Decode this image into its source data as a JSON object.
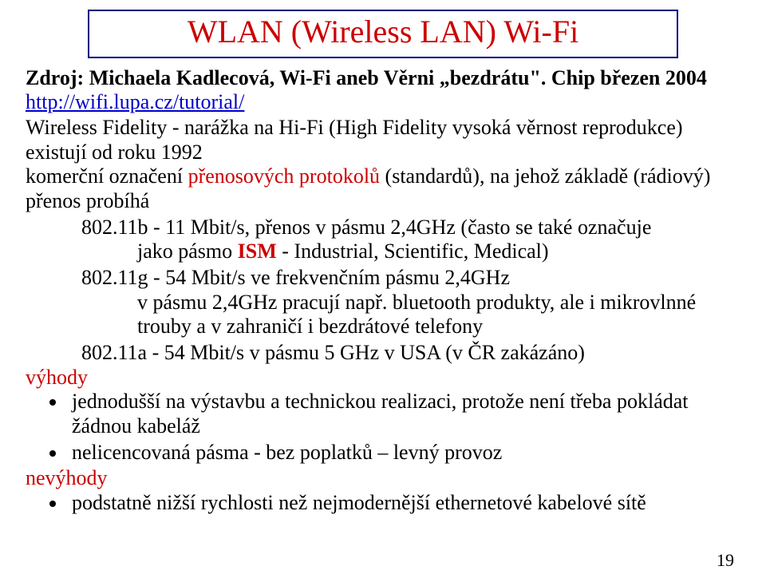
{
  "colors": {
    "title_red": "#cc0000",
    "border_navy": "#000080",
    "link_blue": "#0000cc",
    "text_black": "#000000",
    "background": "#ffffff"
  },
  "typography": {
    "title_fontsize": 40,
    "body_fontsize": 26,
    "pagenum_fontsize": 22,
    "font_family": "Times New Roman"
  },
  "title": "WLAN (Wireless LAN) Wi-Fi",
  "source_line": "Zdroj: Michaela Kadlecová, Wi-Fi aneb Věrni „bezdrátu\". Chip březen 2004",
  "link": "http://wifi.lupa.cz/tutorial/",
  "intro1": "Wireless Fidelity - narážka na Hi-Fi (High Fidelity vysoká věrnost reprodukce)",
  "intro2": "existují od roku 1992",
  "intro3a": "komerční označení ",
  "intro3_red": "přenosových protokolů",
  "intro3b": " (standardů), na jehož základě (rádiový) přenos probíhá",
  "std_b_a": "802.11b - 11 Mbit/s, přenos v pásmu 2,4GHz (často se také označuje",
  "std_b_b": "jako pásmo ",
  "std_b_red": "ISM",
  "std_b_c": " - Industrial, Scientific, Medical)",
  "std_g_a": "802.11g - 54 Mbit/s ve frekvenčním pásmu 2,4GHz",
  "std_g_b": "v pásmu 2,4GHz pracují např. bluetooth produkty, ale i mikrovlnné trouby a v zahraničí i bezdrátové telefony",
  "std_a": "802.11a  - 54 Mbit/s v pásmu 5 GHz v USA (v ČR zakázáno)",
  "vyhody_label": "výhody",
  "vyhody_items": [
    "jednodušší na výstavbu a technickou realizaci, protože není třeba pokládat žádnou kabeláž",
    "nelicencovaná pásma - bez poplatků – levný provoz"
  ],
  "nevyhody_label": "nevýhody",
  "nevyhody_items": [
    "podstatně nižší rychlosti než nejmodernější ethernetové kabelové sítě"
  ],
  "page_number": "19"
}
